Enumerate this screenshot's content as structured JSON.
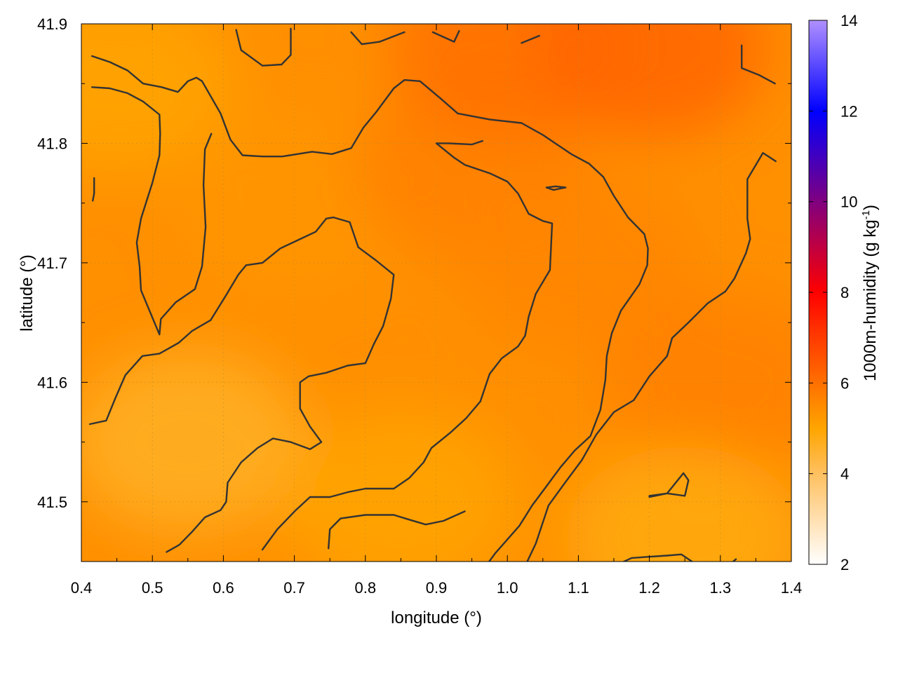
{
  "chart_data": {
    "type": "heatmap",
    "title": "",
    "xlabel": "longitude (°)",
    "ylabel": "latitude (°)",
    "xlim": [
      0.4,
      1.4
    ],
    "ylim": [
      41.45,
      41.9
    ],
    "xticks": [
      "0.4",
      "0.5",
      "0.6",
      "0.7",
      "0.8",
      "0.9",
      "1.0",
      "1.1",
      "1.2",
      "1.3",
      "1.4"
    ],
    "yticks": [
      "41.5",
      "41.6",
      "41.7",
      "41.8",
      "41.9"
    ],
    "grid": true,
    "colorbar": {
      "label_main": "1000m-humidity (g kg",
      "label_sup": "-1",
      "label_end": ")",
      "range": [
        2,
        14
      ],
      "ticks": [
        "2",
        "4",
        "6",
        "8",
        "10",
        "12",
        "14"
      ],
      "stops": [
        {
          "value": 2,
          "color": "#ffffff"
        },
        {
          "value": 4,
          "color": "#ffc060"
        },
        {
          "value": 5,
          "color": "#ffa500"
        },
        {
          "value": 6,
          "color": "#ff7000"
        },
        {
          "value": 7.2,
          "color": "#ff3000"
        },
        {
          "value": 8,
          "color": "#ff0000"
        },
        {
          "value": 10,
          "color": "#800080"
        },
        {
          "value": 12,
          "color": "#0000ff"
        },
        {
          "value": 14,
          "color": "#b090ff"
        }
      ]
    },
    "field_samples": [
      {
        "lon": 0.45,
        "lat": 41.85,
        "value": 5.0
      },
      {
        "lon": 0.55,
        "lat": 41.55,
        "value": 4.6
      },
      {
        "lon": 0.7,
        "lat": 41.75,
        "value": 5.3
      },
      {
        "lon": 0.85,
        "lat": 41.5,
        "value": 5.0
      },
      {
        "lon": 0.95,
        "lat": 41.78,
        "value": 5.7
      },
      {
        "lon": 1.0,
        "lat": 41.88,
        "value": 6.0
      },
      {
        "lon": 1.1,
        "lat": 41.7,
        "value": 5.6
      },
      {
        "lon": 1.2,
        "lat": 41.88,
        "value": 6.2
      },
      {
        "lon": 1.3,
        "lat": 41.6,
        "value": 5.7
      },
      {
        "lon": 1.25,
        "lat": 41.47,
        "value": 4.8
      }
    ],
    "contours": [
      [
        [
          0.415,
          41.873
        ],
        [
          0.44,
          41.868
        ],
        [
          0.465,
          41.861
        ],
        [
          0.487,
          41.85
        ],
        [
          0.513,
          41.847
        ],
        [
          0.536,
          41.843
        ],
        [
          0.55,
          41.852
        ],
        [
          0.562,
          41.855
        ],
        [
          0.57,
          41.852
        ],
        [
          0.596,
          41.825
        ],
        [
          0.61,
          41.803
        ],
        [
          0.627,
          41.79
        ],
        [
          0.655,
          41.789
        ],
        [
          0.683,
          41.789
        ],
        [
          0.725,
          41.793
        ],
        [
          0.753,
          41.791
        ],
        [
          0.78,
          41.796
        ],
        [
          0.797,
          41.813
        ],
        [
          0.815,
          41.826
        ],
        [
          0.84,
          41.846
        ],
        [
          0.855,
          41.853
        ],
        [
          0.877,
          41.852
        ],
        [
          0.905,
          41.838
        ],
        [
          0.93,
          41.825
        ],
        [
          0.975,
          41.82
        ],
        [
          1.02,
          41.817
        ],
        [
          1.05,
          41.807
        ],
        [
          1.09,
          41.791
        ],
        [
          1.115,
          41.783
        ],
        [
          1.135,
          41.772
        ],
        [
          1.15,
          41.756
        ],
        [
          1.17,
          41.738
        ],
        [
          1.193,
          41.724
        ],
        [
          1.198,
          41.712
        ],
        [
          1.197,
          41.698
        ],
        [
          1.186,
          41.682
        ],
        [
          1.16,
          41.66
        ],
        [
          1.147,
          41.641
        ],
        [
          1.14,
          41.622
        ],
        [
          1.138,
          41.602
        ],
        [
          1.131,
          41.577
        ],
        [
          1.117,
          41.555
        ],
        [
          1.095,
          41.543
        ],
        [
          1.075,
          41.529
        ],
        [
          1.055,
          41.513
        ],
        [
          1.035,
          41.497
        ],
        [
          1.017,
          41.48
        ],
        [
          0.983,
          41.457
        ],
        [
          0.962,
          41.44
        ]
      ],
      [
        [
          0.415,
          41.847
        ],
        [
          0.44,
          41.846
        ],
        [
          0.465,
          41.842
        ],
        [
          0.487,
          41.835
        ],
        [
          0.51,
          41.824
        ],
        [
          0.511,
          41.808
        ],
        [
          0.51,
          41.79
        ],
        [
          0.5,
          41.767
        ],
        [
          0.484,
          41.737
        ],
        [
          0.478,
          41.717
        ],
        [
          0.482,
          41.697
        ],
        [
          0.484,
          41.677
        ],
        [
          0.498,
          41.657
        ],
        [
          0.51,
          41.64
        ],
        [
          0.512,
          41.653
        ],
        [
          0.533,
          41.667
        ],
        [
          0.56,
          41.678
        ],
        [
          0.57,
          41.697
        ],
        [
          0.575,
          41.73
        ],
        [
          0.572,
          41.765
        ],
        [
          0.574,
          41.795
        ],
        [
          0.583,
          41.808
        ]
      ],
      [
        [
          0.412,
          41.565
        ],
        [
          0.435,
          41.568
        ],
        [
          0.448,
          41.587
        ],
        [
          0.462,
          41.606
        ],
        [
          0.486,
          41.622
        ],
        [
          0.51,
          41.624
        ],
        [
          0.537,
          41.633
        ],
        [
          0.556,
          41.643
        ],
        [
          0.582,
          41.652
        ],
        [
          0.604,
          41.673
        ],
        [
          0.621,
          41.69
        ],
        [
          0.632,
          41.698
        ],
        [
          0.655,
          41.7
        ],
        [
          0.68,
          41.712
        ],
        [
          0.705,
          41.719
        ],
        [
          0.73,
          41.726
        ],
        [
          0.745,
          41.737
        ],
        [
          0.755,
          41.738
        ],
        [
          0.778,
          41.734
        ],
        [
          0.79,
          41.713
        ],
        [
          0.815,
          41.702
        ],
        [
          0.84,
          41.69
        ],
        [
          0.836,
          41.67
        ],
        [
          0.825,
          41.647
        ],
        [
          0.812,
          41.632
        ],
        [
          0.8,
          41.616
        ],
        [
          0.775,
          41.614
        ],
        [
          0.745,
          41.608
        ],
        [
          0.72,
          41.605
        ],
        [
          0.708,
          41.6
        ],
        [
          0.708,
          41.578
        ],
        [
          0.722,
          41.563
        ],
        [
          0.738,
          41.55
        ],
        [
          0.722,
          41.544
        ],
        [
          0.695,
          41.55
        ],
        [
          0.67,
          41.553
        ],
        [
          0.648,
          41.545
        ],
        [
          0.625,
          41.533
        ],
        [
          0.606,
          41.516
        ],
        [
          0.604,
          41.5
        ],
        [
          0.596,
          41.493
        ],
        [
          0.574,
          41.487
        ],
        [
          0.556,
          41.475
        ],
        [
          0.538,
          41.464
        ],
        [
          0.52,
          41.458
        ]
      ],
      [
        [
          0.655,
          41.46
        ],
        [
          0.676,
          41.477
        ],
        [
          0.702,
          41.493
        ],
        [
          0.722,
          41.504
        ],
        [
          0.75,
          41.504
        ],
        [
          0.775,
          41.508
        ],
        [
          0.8,
          41.511
        ],
        [
          0.84,
          41.511
        ],
        [
          0.862,
          41.52
        ],
        [
          0.882,
          41.533
        ],
        [
          0.893,
          41.545
        ],
        [
          0.92,
          41.558
        ],
        [
          0.942,
          41.57
        ],
        [
          0.962,
          41.584
        ],
        [
          0.975,
          41.607
        ],
        [
          0.992,
          41.62
        ],
        [
          1.015,
          41.63
        ],
        [
          1.025,
          41.639
        ],
        [
          1.03,
          41.655
        ],
        [
          1.04,
          41.674
        ],
        [
          1.06,
          41.694
        ],
        [
          1.063,
          41.733
        ],
        [
          1.05,
          41.735
        ],
        [
          1.03,
          41.741
        ],
        [
          1.015,
          41.758
        ],
        [
          1.0,
          41.768
        ],
        [
          0.975,
          41.775
        ],
        [
          0.94,
          41.782
        ],
        [
          0.925,
          41.788
        ],
        [
          0.9,
          41.8
        ],
        [
          0.917,
          41.8
        ],
        [
          0.95,
          41.799
        ],
        [
          0.965,
          41.802
        ]
      ],
      [
        [
          1.02,
          41.44
        ],
        [
          1.04,
          41.465
        ],
        [
          1.058,
          41.497
        ],
        [
          1.08,
          41.515
        ],
        [
          1.105,
          41.535
        ],
        [
          1.125,
          41.556
        ],
        [
          1.15,
          41.575
        ],
        [
          1.178,
          41.585
        ],
        [
          1.2,
          41.605
        ],
        [
          1.225,
          41.622
        ],
        [
          1.232,
          41.637
        ],
        [
          1.255,
          41.65
        ],
        [
          1.282,
          41.666
        ],
        [
          1.307,
          41.676
        ],
        [
          1.32,
          41.687
        ],
        [
          1.336,
          41.708
        ],
        [
          1.342,
          41.72
        ],
        [
          1.338,
          41.737
        ],
        [
          1.338,
          41.77
        ],
        [
          1.36,
          41.792
        ],
        [
          1.378,
          41.785
        ]
      ],
      [
        [
          0.618,
          41.895
        ],
        [
          0.625,
          41.878
        ],
        [
          0.655,
          41.865
        ],
        [
          0.682,
          41.866
        ],
        [
          0.695,
          41.874
        ],
        [
          0.695,
          41.896
        ]
      ],
      [
        [
          0.78,
          41.893
        ],
        [
          0.795,
          41.883
        ],
        [
          0.82,
          41.885
        ],
        [
          0.855,
          41.893
        ]
      ],
      [
        [
          0.895,
          41.893
        ],
        [
          0.925,
          41.885
        ],
        [
          0.932,
          41.894
        ]
      ],
      [
        [
          1.02,
          41.884
        ],
        [
          1.045,
          41.89
        ]
      ],
      [
        [
          1.33,
          41.882
        ],
        [
          1.33,
          41.863
        ],
        [
          1.355,
          41.857
        ],
        [
          1.377,
          41.85
        ]
      ],
      [
        [
          1.055,
          41.763
        ],
        [
          1.068,
          41.764
        ],
        [
          1.082,
          41.763
        ],
        [
          1.065,
          41.761
        ],
        [
          1.055,
          41.763
        ]
      ],
      [
        [
          0.418,
          41.771
        ],
        [
          0.418,
          41.758
        ],
        [
          0.416,
          41.752
        ]
      ],
      [
        [
          1.2,
          41.504
        ],
        [
          1.225,
          41.507
        ],
        [
          1.25,
          41.505
        ],
        [
          1.255,
          41.518
        ],
        [
          1.248,
          41.524
        ],
        [
          1.225,
          41.507
        ],
        [
          1.2,
          41.505
        ]
      ],
      [
        [
          1.115,
          41.44
        ],
        [
          1.15,
          41.446
        ],
        [
          1.175,
          41.453
        ],
        [
          1.225,
          41.455
        ],
        [
          1.245,
          41.456
        ],
        [
          1.26,
          41.45
        ]
      ],
      [
        [
          0.748,
          41.461
        ],
        [
          0.75,
          41.477
        ],
        [
          0.765,
          41.486
        ],
        [
          0.8,
          41.489
        ],
        [
          0.84,
          41.489
        ],
        [
          0.862,
          41.485
        ],
        [
          0.885,
          41.481
        ],
        [
          0.91,
          41.484
        ],
        [
          0.94,
          41.492
        ]
      ],
      [
        [
          1.318,
          41.45
        ],
        [
          1.322,
          41.452
        ]
      ]
    ]
  }
}
